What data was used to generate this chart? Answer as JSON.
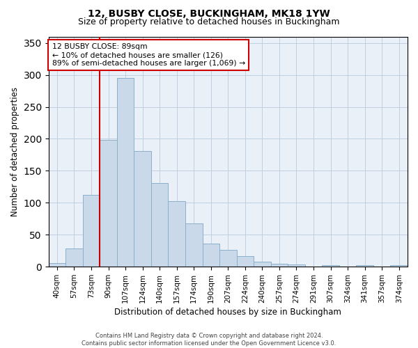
{
  "title1": "12, BUSBY CLOSE, BUCKINGHAM, MK18 1YW",
  "title2": "Size of property relative to detached houses in Buckingham",
  "xlabel": "Distribution of detached houses by size in Buckingham",
  "ylabel": "Number of detached properties",
  "bar_labels": [
    "40sqm",
    "57sqm",
    "73sqm",
    "90sqm",
    "107sqm",
    "124sqm",
    "140sqm",
    "157sqm",
    "174sqm",
    "190sqm",
    "207sqm",
    "224sqm",
    "240sqm",
    "257sqm",
    "274sqm",
    "291sqm",
    "307sqm",
    "324sqm",
    "341sqm",
    "357sqm",
    "374sqm"
  ],
  "bar_values": [
    6,
    28,
    112,
    198,
    295,
    181,
    131,
    103,
    68,
    36,
    26,
    17,
    8,
    5,
    3,
    0,
    2,
    0,
    2,
    0,
    2
  ],
  "bar_color": "#c9d9ea",
  "bar_edge_color": "#8ab0cc",
  "vline_pos": 2.5,
  "vline_color": "#cc0000",
  "annotation_text": "12 BUSBY CLOSE: 89sqm\n← 10% of detached houses are smaller (126)\n89% of semi-detached houses are larger (1,069) →",
  "annotation_box_color": "#cc0000",
  "ylim": [
    0,
    360
  ],
  "yticks": [
    0,
    50,
    100,
    150,
    200,
    250,
    300,
    350
  ],
  "footer1": "Contains HM Land Registry data © Crown copyright and database right 2024.",
  "footer2": "Contains public sector information licensed under the Open Government Licence v3.0.",
  "bg_color": "#ffffff",
  "ax_bg_color": "#eaf0f7",
  "grid_color": "#c0cfe0"
}
